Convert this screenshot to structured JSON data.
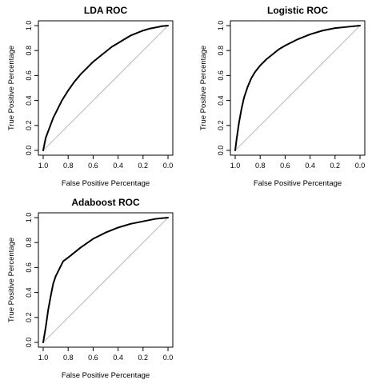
{
  "colors": {
    "curve": "#000000",
    "diagonal": "#a6a6a6",
    "frame": "#000000"
  },
  "chart_data": [
    {
      "type": "line",
      "title": "LDA ROC",
      "xlabel": "False Positive Percentage",
      "ylabel": "True Positive Percentage",
      "xlim": [
        1.0,
        0.0
      ],
      "ylim": [
        0.0,
        1.0
      ],
      "x_ticks": [
        "1.0",
        "0.8",
        "0.6",
        "0.4",
        "0.2",
        "0.0"
      ],
      "y_ticks": [
        "0.0",
        "0.2",
        "0.4",
        "0.6",
        "0.8",
        "1.0"
      ],
      "grid": false,
      "legend": "none",
      "reference_line": {
        "x": [
          1.0,
          0.0
        ],
        "y": [
          0.0,
          1.0
        ]
      },
      "series": [
        {
          "x": [
            1.0,
            0.98,
            0.95,
            0.92,
            0.9,
            0.85,
            0.8,
            0.75,
            0.7,
            0.65,
            0.6,
            0.55,
            0.5,
            0.45,
            0.4,
            0.35,
            0.3,
            0.25,
            0.2,
            0.15,
            0.1,
            0.05,
            0.0
          ],
          "y": [
            0.0,
            0.1,
            0.18,
            0.26,
            0.3,
            0.4,
            0.48,
            0.55,
            0.61,
            0.66,
            0.71,
            0.75,
            0.79,
            0.83,
            0.86,
            0.89,
            0.92,
            0.94,
            0.96,
            0.975,
            0.985,
            0.995,
            1.0
          ]
        }
      ]
    },
    {
      "type": "line",
      "title": "Logistic ROC",
      "xlabel": "False Positive Percentage",
      "ylabel": "True Positive Percentage",
      "xlim": [
        1.0,
        0.0
      ],
      "ylim": [
        0.0,
        1.0
      ],
      "x_ticks": [
        "1.0",
        "0.8",
        "0.6",
        "0.4",
        "0.2",
        "0.0"
      ],
      "y_ticks": [
        "0.0",
        "0.2",
        "0.4",
        "0.6",
        "0.8",
        "1.0"
      ],
      "grid": false,
      "legend": "none",
      "reference_line": {
        "x": [
          1.0,
          0.0
        ],
        "y": [
          0.0,
          1.0
        ]
      },
      "series": [
        {
          "x": [
            1.0,
            0.99,
            0.97,
            0.95,
            0.93,
            0.9,
            0.87,
            0.84,
            0.8,
            0.75,
            0.7,
            0.65,
            0.6,
            0.5,
            0.4,
            0.3,
            0.2,
            0.1,
            0.0
          ],
          "y": [
            0.0,
            0.08,
            0.22,
            0.33,
            0.42,
            0.51,
            0.58,
            0.63,
            0.68,
            0.73,
            0.77,
            0.81,
            0.84,
            0.89,
            0.93,
            0.96,
            0.98,
            0.99,
            1.0
          ]
        }
      ]
    },
    {
      "type": "line",
      "title": "Adaboost ROC",
      "xlabel": "False Positive Percentage",
      "ylabel": "True Positive Percentage",
      "xlim": [
        1.0,
        0.0
      ],
      "ylim": [
        0.0,
        1.0
      ],
      "x_ticks": [
        "1.0",
        "0.8",
        "0.6",
        "0.4",
        "0.2",
        "0.0"
      ],
      "y_ticks": [
        "0.0",
        "0.2",
        "0.4",
        "0.6",
        "0.8",
        "1.0"
      ],
      "grid": false,
      "legend": "none",
      "reference_line": {
        "x": [
          1.0,
          0.0
        ],
        "y": [
          0.0,
          1.0
        ]
      },
      "series": [
        {
          "x": [
            1.0,
            0.98,
            0.96,
            0.94,
            0.92,
            0.9,
            0.88,
            0.86,
            0.84,
            0.8,
            0.75,
            0.7,
            0.6,
            0.5,
            0.4,
            0.3,
            0.2,
            0.1,
            0.0
          ],
          "y": [
            0.0,
            0.12,
            0.26,
            0.37,
            0.47,
            0.53,
            0.57,
            0.61,
            0.65,
            0.68,
            0.72,
            0.76,
            0.83,
            0.88,
            0.92,
            0.95,
            0.97,
            0.99,
            1.0
          ]
        }
      ]
    }
  ]
}
